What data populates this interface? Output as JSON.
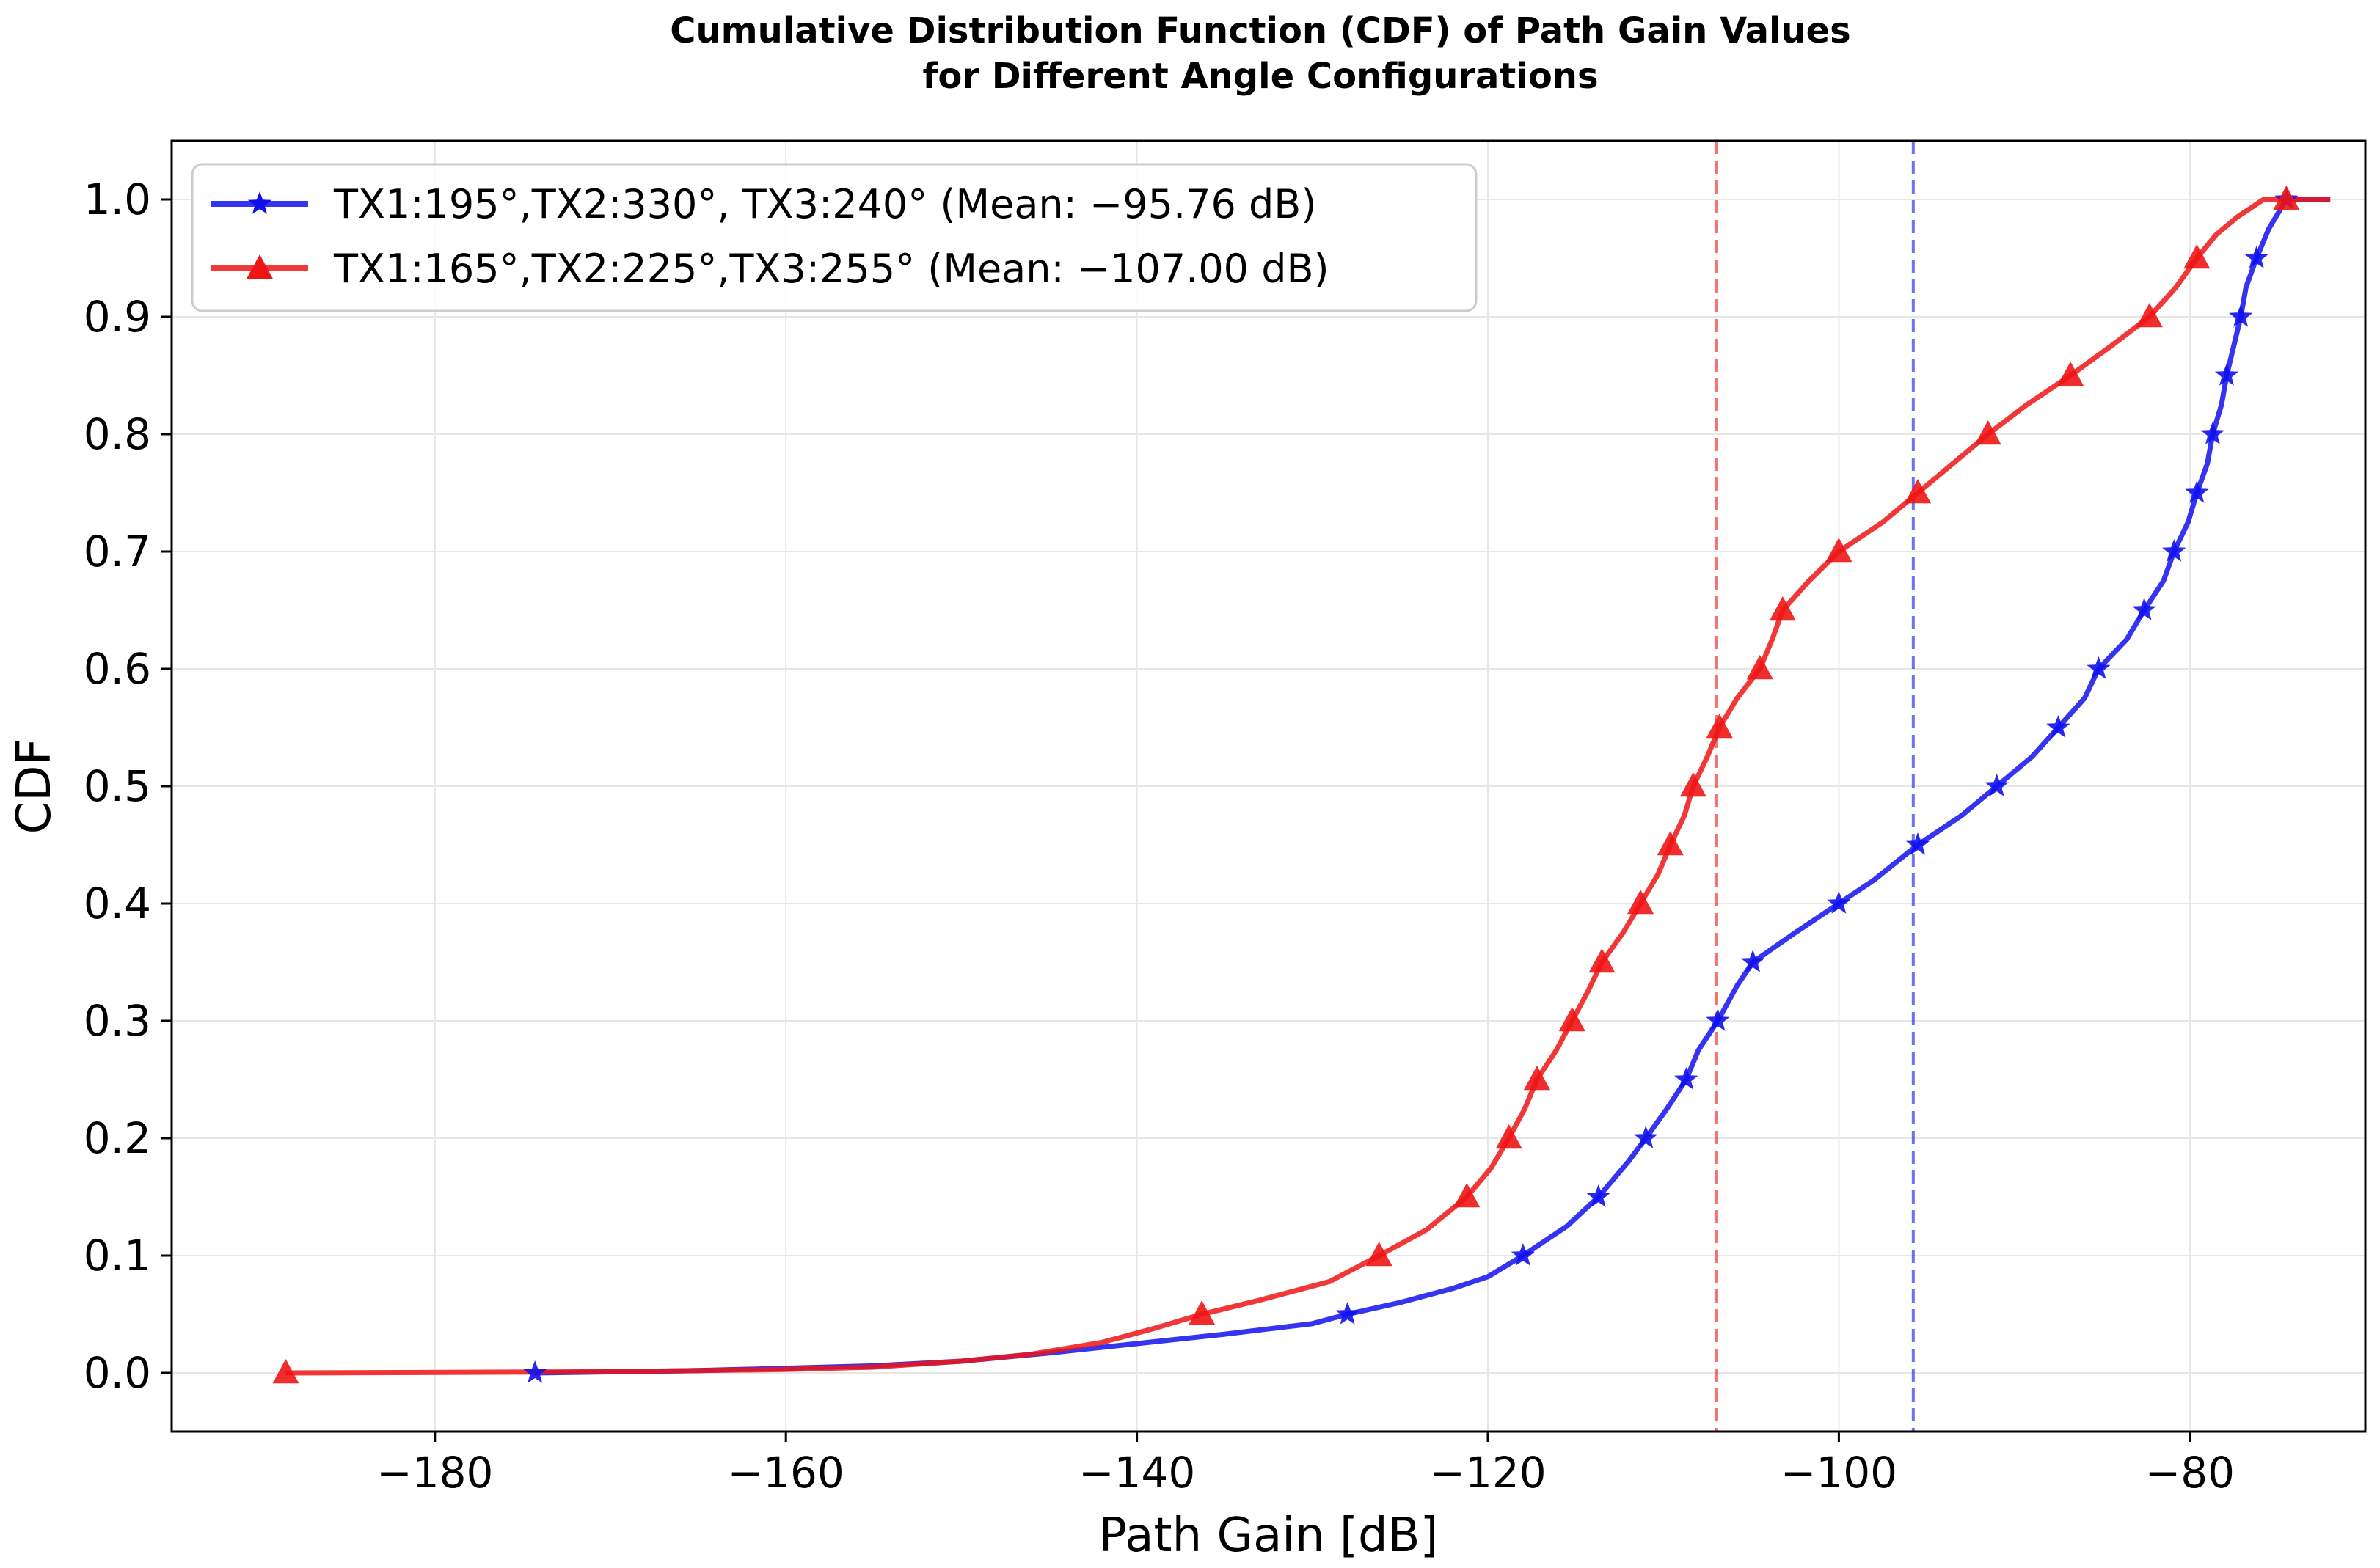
{
  "chart_data": {
    "type": "line",
    "title_lines": [
      "Cumulative Distribution Function (CDF) of Path Gain Values",
      "for Different Angle Configurations"
    ],
    "xlabel": "Path Gain [dB]",
    "ylabel": "CDF",
    "xlim": [
      -195,
      -70
    ],
    "ylim": [
      -0.05,
      1.05
    ],
    "xticks": [
      -180,
      -160,
      -140,
      -120,
      -100,
      -80
    ],
    "xtick_labels": [
      "−180",
      "−160",
      "−140",
      "−120",
      "−100",
      "−80"
    ],
    "yticks": [
      0.0,
      0.1,
      0.2,
      0.3,
      0.4,
      0.5,
      0.6,
      0.7,
      0.8,
      0.9,
      1.0
    ],
    "ytick_labels": [
      "0.0",
      "0.1",
      "0.2",
      "0.3",
      "0.4",
      "0.5",
      "0.6",
      "0.7",
      "0.8",
      "0.9",
      "1.0"
    ],
    "grid": true,
    "legend_position": "top-left",
    "series": [
      {
        "name": "TX1:195°,TX2:330°, TX3:240° (Mean: −95.76 dB)",
        "color": "#1010ee",
        "marker": "star",
        "mean": -95.76,
        "curve": [
          [
            -174.3,
            0.0
          ],
          [
            -165,
            0.002
          ],
          [
            -155,
            0.006
          ],
          [
            -150,
            0.01
          ],
          [
            -145,
            0.017
          ],
          [
            -140,
            0.025
          ],
          [
            -135,
            0.033
          ],
          [
            -130,
            0.042
          ],
          [
            -128,
            0.05
          ],
          [
            -125,
            0.06
          ],
          [
            -122,
            0.072
          ],
          [
            -120,
            0.082
          ],
          [
            -118,
            0.1
          ],
          [
            -115.5,
            0.125
          ],
          [
            -113.7,
            0.15
          ],
          [
            -112,
            0.18
          ],
          [
            -111,
            0.2
          ],
          [
            -109.8,
            0.225
          ],
          [
            -108.7,
            0.25
          ],
          [
            -108,
            0.275
          ],
          [
            -106.9,
            0.3
          ],
          [
            -105.8,
            0.33
          ],
          [
            -104.9,
            0.35
          ],
          [
            -102.5,
            0.375
          ],
          [
            -100,
            0.4
          ],
          [
            -98,
            0.42
          ],
          [
            -95.5,
            0.45
          ],
          [
            -93,
            0.475
          ],
          [
            -91,
            0.5
          ],
          [
            -89,
            0.525
          ],
          [
            -87.5,
            0.55
          ],
          [
            -86,
            0.575
          ],
          [
            -85.2,
            0.6
          ],
          [
            -83.6,
            0.625
          ],
          [
            -82.6,
            0.65
          ],
          [
            -81.5,
            0.675
          ],
          [
            -80.9,
            0.7
          ],
          [
            -80.1,
            0.725
          ],
          [
            -79.6,
            0.75
          ],
          [
            -79,
            0.775
          ],
          [
            -78.7,
            0.8
          ],
          [
            -78.2,
            0.825
          ],
          [
            -77.9,
            0.85
          ],
          [
            -77.5,
            0.875
          ],
          [
            -77.1,
            0.9
          ],
          [
            -76.8,
            0.925
          ],
          [
            -76.2,
            0.95
          ],
          [
            -75.5,
            0.975
          ],
          [
            -74.5,
            1.0
          ],
          [
            -72,
            1.0
          ]
        ],
        "markers": [
          [
            -174.3,
            0.0
          ],
          [
            -128,
            0.05
          ],
          [
            -118,
            0.1
          ],
          [
            -113.7,
            0.15
          ],
          [
            -111,
            0.2
          ],
          [
            -108.7,
            0.25
          ],
          [
            -106.9,
            0.3
          ],
          [
            -104.9,
            0.35
          ],
          [
            -100,
            0.4
          ],
          [
            -95.5,
            0.45
          ],
          [
            -91,
            0.5
          ],
          [
            -87.5,
            0.55
          ],
          [
            -85.2,
            0.6
          ],
          [
            -82.6,
            0.65
          ],
          [
            -80.9,
            0.7
          ],
          [
            -79.6,
            0.75
          ],
          [
            -78.7,
            0.8
          ],
          [
            -77.9,
            0.85
          ],
          [
            -77.1,
            0.9
          ],
          [
            -76.2,
            0.95
          ],
          [
            -74.5,
            1.0
          ]
        ]
      },
      {
        "name": "TX1:165°,TX2:225°,TX3:255° (Mean: −107.00 dB)",
        "color": "#ee1515",
        "marker": "triangle",
        "mean": -107.0,
        "curve": [
          [
            -188.5,
            0.0
          ],
          [
            -170,
            0.001
          ],
          [
            -160,
            0.003
          ],
          [
            -155,
            0.005
          ],
          [
            -150,
            0.01
          ],
          [
            -146,
            0.016
          ],
          [
            -142,
            0.026
          ],
          [
            -139,
            0.038
          ],
          [
            -136.3,
            0.05
          ],
          [
            -133,
            0.062
          ],
          [
            -129,
            0.078
          ],
          [
            -126.2,
            0.1
          ],
          [
            -123.5,
            0.122
          ],
          [
            -121.2,
            0.15
          ],
          [
            -119.8,
            0.175
          ],
          [
            -118.8,
            0.2
          ],
          [
            -117.9,
            0.225
          ],
          [
            -117.2,
            0.25
          ],
          [
            -116.1,
            0.275
          ],
          [
            -115.2,
            0.3
          ],
          [
            -114.3,
            0.325
          ],
          [
            -113.5,
            0.35
          ],
          [
            -112.3,
            0.375
          ],
          [
            -111.3,
            0.4
          ],
          [
            -110.3,
            0.425
          ],
          [
            -109.6,
            0.45
          ],
          [
            -108.8,
            0.475
          ],
          [
            -108.3,
            0.5
          ],
          [
            -107.5,
            0.525
          ],
          [
            -106.8,
            0.55
          ],
          [
            -105.8,
            0.575
          ],
          [
            -104.5,
            0.6
          ],
          [
            -103.8,
            0.625
          ],
          [
            -103.2,
            0.65
          ],
          [
            -101.7,
            0.675
          ],
          [
            -100,
            0.7
          ],
          [
            -97.5,
            0.725
          ],
          [
            -95.5,
            0.75
          ],
          [
            -93.5,
            0.775
          ],
          [
            -91.5,
            0.8
          ],
          [
            -89.3,
            0.825
          ],
          [
            -86.8,
            0.85
          ],
          [
            -84.5,
            0.875
          ],
          [
            -82.3,
            0.9
          ],
          [
            -80.8,
            0.925
          ],
          [
            -79.6,
            0.95
          ],
          [
            -78.5,
            0.97
          ],
          [
            -77.3,
            0.985
          ],
          [
            -75.8,
            1.0
          ],
          [
            -72,
            1.0
          ]
        ],
        "markers": [
          [
            -188.5,
            0.0
          ],
          [
            -136.3,
            0.05
          ],
          [
            -126.2,
            0.1
          ],
          [
            -121.2,
            0.15
          ],
          [
            -118.8,
            0.2
          ],
          [
            -117.2,
            0.25
          ],
          [
            -115.2,
            0.3
          ],
          [
            -113.5,
            0.35
          ],
          [
            -111.3,
            0.4
          ],
          [
            -109.6,
            0.45
          ],
          [
            -108.3,
            0.5
          ],
          [
            -106.8,
            0.55
          ],
          [
            -104.5,
            0.6
          ],
          [
            -103.2,
            0.65
          ],
          [
            -100,
            0.7
          ],
          [
            -95.5,
            0.75
          ],
          [
            -91.5,
            0.8
          ],
          [
            -86.8,
            0.85
          ],
          [
            -82.3,
            0.9
          ],
          [
            -79.6,
            0.95
          ],
          [
            -74.5,
            1.0
          ]
        ]
      }
    ]
  }
}
